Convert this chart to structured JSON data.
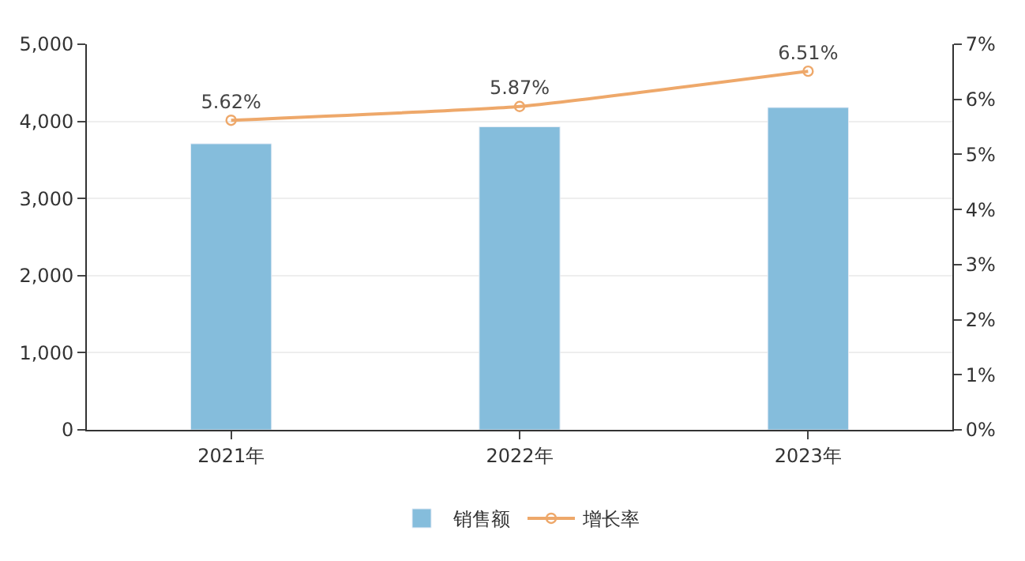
{
  "chart_data": {
    "type": "bar",
    "categories": [
      "2021年",
      "2022年",
      "2023年"
    ],
    "series": [
      {
        "name": "销售额",
        "color": "#85bddc",
        "values": [
          3710,
          3930,
          4180
        ]
      },
      {
        "name": "增长率",
        "type": "line",
        "axis": "y2",
        "color": "#eea86a",
        "values": [
          5.62,
          5.87,
          6.51
        ],
        "value_labels": [
          "5.62%",
          "5.87%",
          "6.51%"
        ],
        "marker": "circle"
      }
    ],
    "ylim": [
      0,
      5000
    ],
    "yticks": [
      {
        "value": 0,
        "label": "0"
      },
      {
        "value": 1000,
        "label": "1,000"
      },
      {
        "value": 2000,
        "label": "2,000"
      },
      {
        "value": 3000,
        "label": "3,000"
      },
      {
        "value": 4000,
        "label": "4,000"
      },
      {
        "value": 5000,
        "label": "5,000"
      }
    ],
    "y2lim": [
      0,
      7
    ],
    "y2ticks": [
      {
        "value": 0,
        "label": "0%"
      },
      {
        "value": 1,
        "label": "1%"
      },
      {
        "value": 2,
        "label": "2%"
      },
      {
        "value": 3,
        "label": "3%"
      },
      {
        "value": 4,
        "label": "4%"
      },
      {
        "value": 5,
        "label": "5%"
      },
      {
        "value": 6,
        "label": "6%"
      },
      {
        "value": 7,
        "label": "7%"
      }
    ],
    "grid": "y",
    "legend": "bottom"
  }
}
